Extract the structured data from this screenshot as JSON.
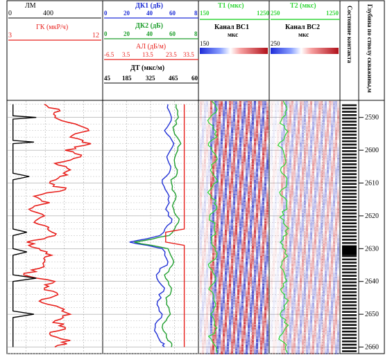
{
  "header": {
    "lm": {
      "label": "ЛМ",
      "min": "0",
      "max": "400"
    },
    "gk": {
      "label": "ГК (мкР/ч)",
      "min": "3",
      "max": "12"
    },
    "dk1": {
      "label": "ДК1 (дБ)",
      "ticks": [
        "0",
        "20",
        "40",
        "60",
        "8"
      ]
    },
    "dk2": {
      "label": "ДК2 (дБ)",
      "ticks": [
        "0",
        "20",
        "40",
        "60",
        "8"
      ]
    },
    "al": {
      "label": "АЛ (дБ/м)",
      "ticks": [
        "-6.5",
        "3.5",
        "13.5",
        "23.5",
        "33.5"
      ]
    },
    "dt": {
      "label": "ДТ (мкс/м)",
      "ticks": [
        "45",
        "185",
        "325",
        "465",
        "60"
      ]
    },
    "t1": {
      "label": "Т1 (мкс)",
      "start": "150",
      "end": "1250"
    },
    "t2": {
      "label": "Т2 (мкс)",
      "start": "250",
      "end": "1250"
    },
    "bc1": {
      "label": "Канал ВС1",
      "unit": "мкс",
      "scale_start": "150"
    },
    "bc2": {
      "label": "Канал ВС2",
      "unit": "мкс",
      "scale_start": "250"
    },
    "contact": "Состояние контакта",
    "depth": "Глубина по стволу скважины,м"
  },
  "colors": {
    "gk": "#e8201c",
    "lm": "#000000",
    "dk1": "#1f2fd6",
    "dk2": "#1e9e2c",
    "al": "#e8201c",
    "t_curve": "#34d63a",
    "vdl_red": "#c8151d",
    "vdl_blue": "#2a2ec4"
  },
  "chart_data": {
    "type": "line",
    "depth_axis": {
      "label": "Глубина по стволу скважины,м",
      "ticks": [
        2590,
        2600,
        2610,
        2620,
        2630,
        2640,
        2650,
        2660
      ],
      "range": [
        2585,
        2662
      ]
    },
    "series": [
      {
        "name": "ГК (мкР/ч)",
        "units": "мкР/ч",
        "range": [
          3,
          12
        ],
        "depth": [
          2586,
          2588,
          2590,
          2592,
          2594,
          2596,
          2598,
          2600,
          2602,
          2604,
          2606,
          2608,
          2610,
          2612,
          2614,
          2616,
          2618,
          2620,
          2622,
          2624,
          2626,
          2628,
          2630,
          2632,
          2634,
          2636,
          2638,
          2640,
          2642,
          2644,
          2646,
          2648,
          2650,
          2652,
          2654,
          2656,
          2658,
          2660
        ],
        "values": [
          6.5,
          8.0,
          7.5,
          9.5,
          10.8,
          9.0,
          11.0,
          8.5,
          10.0,
          7.5,
          9.0,
          8.0,
          7.0,
          8.5,
          5.5,
          7.0,
          5.0,
          6.5,
          5.5,
          6.8,
          7.5,
          4.8,
          6.0,
          7.2,
          6.5,
          6.0,
          4.5,
          7.5,
          6.5,
          7.8,
          6.0,
          8.0,
          9.0,
          7.5,
          8.5,
          7.0,
          9.0,
          7.5
        ]
      },
      {
        "name": "ЛМ",
        "range": [
          0,
          400
        ],
        "depth": [
          2586,
          2589.5,
          2590,
          2590.5,
          2597,
          2597.5,
          2598,
          2607,
          2608,
          2609,
          2624,
          2625,
          2626,
          2630,
          2631,
          2632,
          2638,
          2639,
          2640,
          2649,
          2650,
          2651,
          2660
        ],
        "values": [
          20,
          20,
          120,
          20,
          20,
          110,
          20,
          20,
          90,
          20,
          20,
          80,
          20,
          20,
          80,
          20,
          20,
          120,
          20,
          20,
          110,
          20,
          20
        ]
      },
      {
        "name": "ДК1 (дБ)",
        "range": [
          0,
          80
        ],
        "depth": [
          2586,
          2590,
          2594,
          2598,
          2602,
          2606,
          2610,
          2614,
          2618,
          2622,
          2626,
          2628,
          2630,
          2634,
          2638,
          2642,
          2646,
          2650,
          2654,
          2658,
          2660
        ],
        "values": [
          55,
          58,
          52,
          60,
          54,
          57,
          50,
          56,
          53,
          58,
          48,
          22,
          50,
          55,
          45,
          52,
          46,
          50,
          44,
          48,
          52
        ]
      },
      {
        "name": "ДК2 (дБ)",
        "range": [
          0,
          80
        ],
        "depth": [
          2586,
          2590,
          2594,
          2598,
          2602,
          2606,
          2610,
          2614,
          2618,
          2622,
          2626,
          2628,
          2630,
          2634,
          2638,
          2642,
          2646,
          2650,
          2654,
          2658,
          2660
        ],
        "values": [
          62,
          64,
          60,
          66,
          61,
          63,
          58,
          62,
          60,
          64,
          56,
          26,
          55,
          60,
          52,
          58,
          54,
          57,
          50,
          55,
          58
        ]
      },
      {
        "name": "АЛ (дБ/м)",
        "range": [
          -6.5,
          33.5
        ],
        "depth": [
          2586,
          2600,
          2620,
          2624,
          2625,
          2628,
          2629,
          2630,
          2645,
          2660
        ],
        "values": [
          28,
          28,
          28,
          28,
          20,
          20,
          28,
          28,
          28,
          28
        ]
      }
    ]
  }
}
